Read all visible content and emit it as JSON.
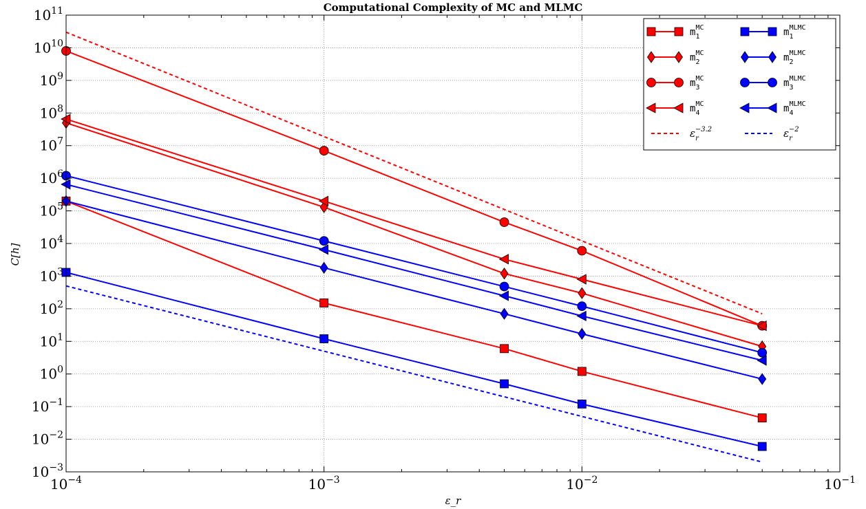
{
  "chart_data": {
    "type": "line",
    "title": "Computational Complexity of MC and MLMC",
    "xlabel": "ε_r",
    "ylabel": "C[h]",
    "xscale": "log",
    "yscale": "log",
    "xlim": [
      0.0001,
      0.1
    ],
    "ylim": [
      0.001,
      100000000000
    ],
    "grid": true,
    "legend_position": "top-right",
    "x_ticks": [
      {
        "value": 0.0001,
        "base": "10",
        "exp": "−4"
      },
      {
        "value": 0.001,
        "base": "10",
        "exp": "−3"
      },
      {
        "value": 0.01,
        "base": "10",
        "exp": "−2"
      },
      {
        "value": 0.1,
        "base": "10",
        "exp": "−1"
      }
    ],
    "y_ticks": [
      {
        "value": 0.001,
        "base": "10",
        "exp": "−3"
      },
      {
        "value": 0.01,
        "base": "10",
        "exp": "−2"
      },
      {
        "value": 0.1,
        "base": "10",
        "exp": "−1"
      },
      {
        "value": 1,
        "base": "10",
        "exp": "0"
      },
      {
        "value": 10,
        "base": "10",
        "exp": "1"
      },
      {
        "value": 100,
        "base": "10",
        "exp": "2"
      },
      {
        "value": 1000,
        "base": "10",
        "exp": "3"
      },
      {
        "value": 10000,
        "base": "10",
        "exp": "4"
      },
      {
        "value": 100000,
        "base": "10",
        "exp": "5"
      },
      {
        "value": 1000000,
        "base": "10",
        "exp": "6"
      },
      {
        "value": 10000000,
        "base": "10",
        "exp": "7"
      },
      {
        "value": 100000000,
        "base": "10",
        "exp": "8"
      },
      {
        "value": 1000000000,
        "base": "10",
        "exp": "9"
      },
      {
        "value": 10000000000,
        "base": "10",
        "exp": "10"
      },
      {
        "value": 100000000000,
        "base": "10",
        "exp": "11"
      }
    ],
    "series": [
      {
        "id": "m1-mc",
        "label_main": "m",
        "label_sub": "1",
        "label_sup": "MC",
        "color": "#ff0000",
        "marker": "square",
        "dashed": false,
        "x": [
          0.0001,
          0.001,
          0.005,
          0.01,
          0.05
        ],
        "y": [
          200000,
          150,
          6,
          1.2,
          0.045
        ]
      },
      {
        "id": "m2-mc",
        "label_main": "m",
        "label_sub": "2",
        "label_sup": "MC",
        "color": "#ff0000",
        "marker": "diamond",
        "dashed": false,
        "x": [
          0.0001,
          0.001,
          0.005,
          0.01,
          0.05
        ],
        "y": [
          50000000,
          130000,
          1200,
          300,
          7
        ]
      },
      {
        "id": "m3-mc",
        "label_main": "m",
        "label_sub": "3",
        "label_sup": "MC",
        "color": "#ff0000",
        "marker": "circle",
        "dashed": false,
        "x": [
          0.0001,
          0.001,
          0.005,
          0.01,
          0.05
        ],
        "y": [
          8000000000,
          7000000,
          45000,
          6000,
          30
        ]
      },
      {
        "id": "m4-mc",
        "label_main": "m",
        "label_sub": "4",
        "label_sup": "MC",
        "color": "#ff0000",
        "marker": "triangle-left",
        "dashed": false,
        "x": [
          0.0001,
          0.001,
          0.005,
          0.01,
          0.05
        ],
        "y": [
          65000000,
          200000,
          3300,
          800,
          30
        ]
      },
      {
        "id": "eps-32",
        "label_main": "ε",
        "label_sub": "r",
        "label_sup": "−3.2",
        "color": "#ff0000",
        "marker": "none",
        "dashed": true,
        "x": [
          0.0001,
          0.05
        ],
        "y": [
          30000000000,
          70
        ]
      },
      {
        "id": "m1-mlmc",
        "label_main": "m",
        "label_sub": "1",
        "label_sup": "MLMC",
        "color": "#0000ff",
        "marker": "square",
        "dashed": false,
        "x": [
          0.0001,
          0.001,
          0.005,
          0.01,
          0.05
        ],
        "y": [
          1300,
          12,
          0.5,
          0.12,
          0.006
        ]
      },
      {
        "id": "m2-mlmc",
        "label_main": "m",
        "label_sub": "2",
        "label_sup": "MLMC",
        "color": "#0000ff",
        "marker": "diamond",
        "dashed": false,
        "x": [
          0.0001,
          0.001,
          0.005,
          0.01,
          0.05
        ],
        "y": [
          200000,
          1800,
          70,
          17,
          0.7
        ]
      },
      {
        "id": "m3-mlmc",
        "label_main": "m",
        "label_sub": "3",
        "label_sup": "MLMC",
        "color": "#0000ff",
        "marker": "circle",
        "dashed": false,
        "x": [
          0.0001,
          0.001,
          0.005,
          0.01,
          0.05
        ],
        "y": [
          1200000,
          12000,
          480,
          120,
          4.5
        ]
      },
      {
        "id": "m4-mlmc",
        "label_main": "m",
        "label_sub": "4",
        "label_sup": "MLMC",
        "color": "#0000ff",
        "marker": "triangle-left",
        "dashed": false,
        "x": [
          0.0001,
          0.001,
          0.005,
          0.01,
          0.05
        ],
        "y": [
          650000,
          6500,
          250,
          60,
          2.6
        ]
      },
      {
        "id": "eps-2",
        "label_main": "ε",
        "label_sub": "r",
        "label_sup": "−2",
        "color": "#0000ff",
        "marker": "none",
        "dashed": true,
        "x": [
          0.0001,
          0.05
        ],
        "y": [
          500,
          0.002
        ]
      }
    ]
  }
}
